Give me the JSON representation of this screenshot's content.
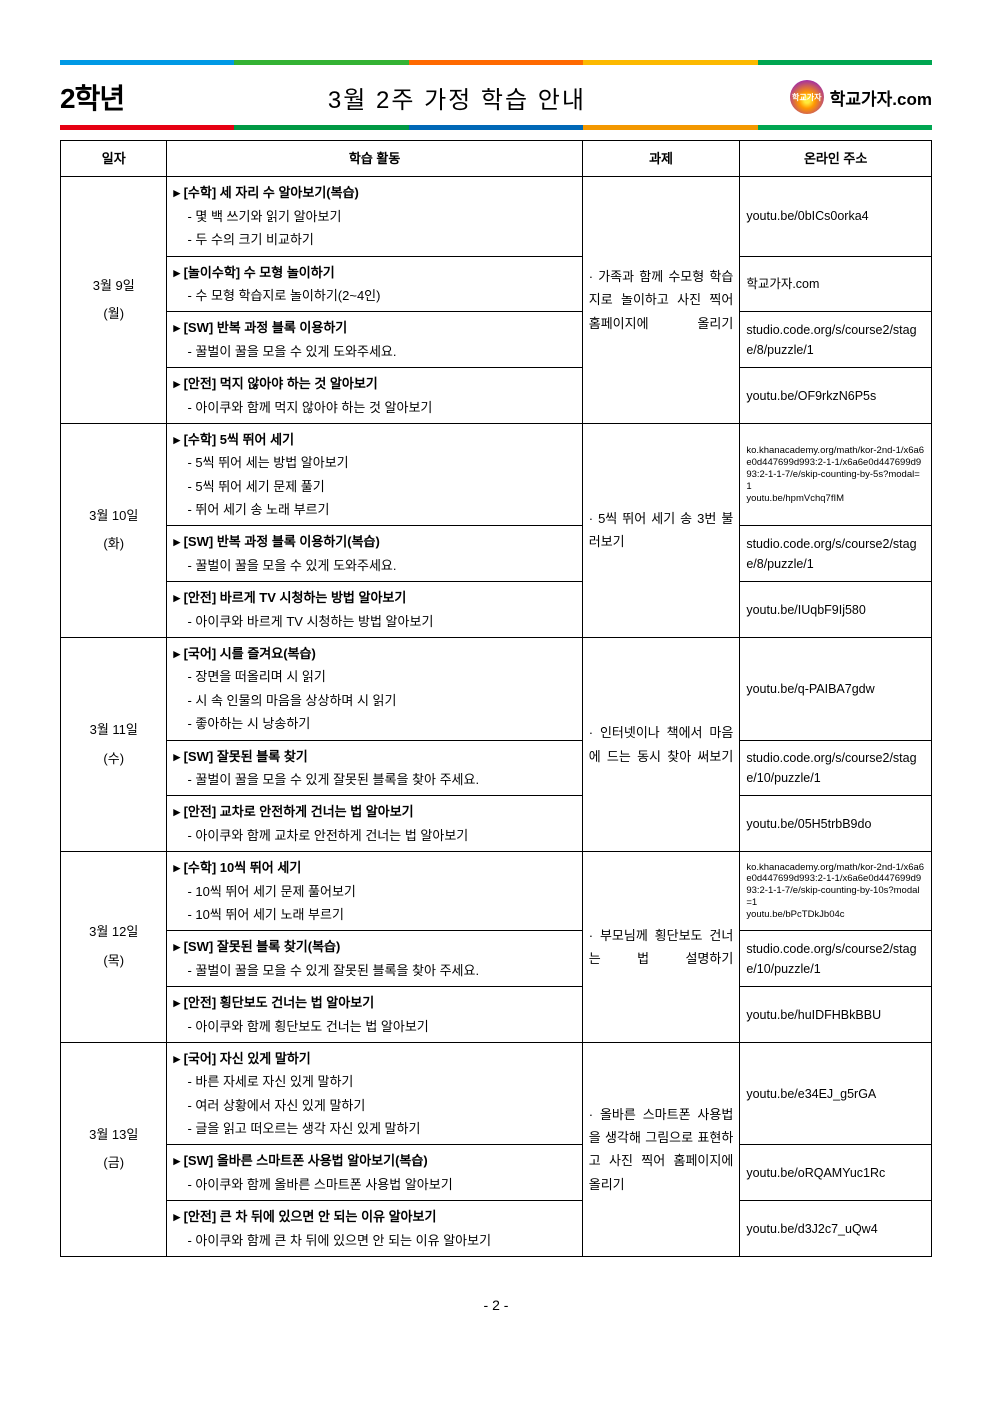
{
  "header": {
    "grade": "2학년",
    "title": "3월 2주 가정 학습 안내",
    "logo_inner": "학교가자",
    "logo_text": "학교가자.com"
  },
  "table": {
    "headers": {
      "date": "일자",
      "activity": "학습 활동",
      "task": "과제",
      "url": "온라인 주소"
    }
  },
  "days": [
    {
      "date": "3월 9일",
      "day": "(월)",
      "task": "· 가족과 함께 수모형 학습지로 놀이하고 사진 찍어 홈페이지에 올리기",
      "blocks": [
        {
          "title": "▸ [수학] 세 자리 수 알아보기(복습)",
          "items": [
            "- 몇 백 쓰기와 읽기 알아보기",
            "- 두 수의 크기 비교하기"
          ],
          "url": "youtu.be/0bICs0orka4"
        },
        {
          "title": "▸ [놀이수학] 수 모형 놀이하기",
          "items": [
            "- 수 모형 학습지로 놀이하기(2~4인)"
          ],
          "url": "학교가자.com"
        },
        {
          "title": "▸ [SW] 반복 과정 블록 이용하기",
          "items": [
            "- 꿀벌이 꿀을 모을 수 있게 도와주세요."
          ],
          "url": "studio.code.org/s/course2/stage/8/puzzle/1"
        },
        {
          "title": "▸ [안전] 먹지 않아야 하는 것 알아보기",
          "items": [
            "- 아이쿠와 함께 먹지 않아야 하는 것 알아보기"
          ],
          "url": "youtu.be/OF9rkzN6P5s"
        }
      ]
    },
    {
      "date": "3월 10일",
      "day": "(화)",
      "task": "· 5씩 뛰어 세기 송 3번 불러보기",
      "blocks": [
        {
          "title": "▸ [수학] 5씩 뛰어 세기",
          "items": [
            "- 5씩 뛰어 세는 방법 알아보기",
            "- 5씩 뛰어 세기 문제 풀기",
            "- 뛰어 세기 송 노래 부르기"
          ],
          "url": "ko.khanacademy.org/math/kor-2nd-1/x6a6e0d447699d993:2-1-1/x6a6e0d447699d993:2-1-1-7/e/skip-counting-by-5s?modal=1\nyoutu.be/hpmVchq7fIM",
          "url_small": true
        },
        {
          "title": "▸ [SW] 반복 과정 블록 이용하기(복습)",
          "items": [
            "- 꿀벌이 꿀을 모을 수 있게 도와주세요."
          ],
          "url": "studio.code.org/s/course2/stage/8/puzzle/1"
        },
        {
          "title": "▸ [안전] 바르게 TV 시청하는 방법 알아보기",
          "items": [
            "- 아이쿠와 바르게 TV 시청하는 방법 알아보기"
          ],
          "url": "youtu.be/IUqbF9Ij580"
        }
      ]
    },
    {
      "date": "3월 11일",
      "day": "(수)",
      "task": "· 인터넷이나 책에서 마음에 드는 동시 찾아 써보기",
      "blocks": [
        {
          "title": "▸ [국어] 시를 즐겨요(복습)",
          "items": [
            "- 장면을 떠올리며 시 읽기",
            "- 시 속 인물의 마음을 상상하며 시 읽기",
            "- 좋아하는 시 낭송하기"
          ],
          "url": "youtu.be/q-PAIBA7gdw"
        },
        {
          "title": "▸ [SW] 잘못된 블록 찾기",
          "items": [
            "- 꿀벌이 꿀을 모을 수 있게 잘못된 블록을 찾아 주세요."
          ],
          "url": "studio.code.org/s/course2/stage/10/puzzle/1"
        },
        {
          "title": "▸ [안전] 교차로 안전하게 건너는 법 알아보기",
          "items": [
            "- 아이쿠와 함께 교차로 안전하게 건너는 법 알아보기"
          ],
          "url": "youtu.be/05H5trbB9do"
        }
      ]
    },
    {
      "date": "3월 12일",
      "day": "(목)",
      "task": "· 부모님께 횡단보도 건너는 법 설명하기",
      "blocks": [
        {
          "title": "▸ [수학] 10씩 뛰어 세기",
          "items": [
            "- 10씩 뛰어 세기 문제 풀어보기",
            "- 10씩 뛰어 세기 노래 부르기"
          ],
          "url": "ko.khanacademy.org/math/kor-2nd-1/x6a6e0d447699d993:2-1-1/x6a6e0d447699d993:2-1-1-7/e/skip-counting-by-10s?modal=1\nyoutu.be/bPcTDkJb04c",
          "url_small": true
        },
        {
          "title": "▸ [SW] 잘못된 블록 찾기(복습)",
          "items": [
            "- 꿀벌이 꿀을 모을 수 있게 잘못된 블록을 찾아 주세요."
          ],
          "url": "studio.code.org/s/course2/stage/10/puzzle/1"
        },
        {
          "title": "▸ [안전] 횡단보도 건너는 법 알아보기",
          "items": [
            "- 아이쿠와 함께 횡단보도 건너는 법 알아보기"
          ],
          "url": "youtu.be/huIDFHBkBBU"
        }
      ]
    },
    {
      "date": "3월 13일",
      "day": "(금)",
      "task": "· 올바른 스마트폰 사용법을 생각해 그림으로 표현하고 사진 찍어 홈페이지에 올리기",
      "blocks": [
        {
          "title": "▸ [국어] 자신 있게 말하기",
          "items": [
            "- 바른 자세로 자신 있게 말하기",
            "- 여러 상황에서 자신 있게 말하기",
            "- 글을 읽고 떠오르는 생각 자신 있게 말하기"
          ],
          "url": "youtu.be/e34EJ_g5rGA"
        },
        {
          "title": "▸ [SW] 올바른 스마트폰 사용법 알아보기(복습)",
          "items": [
            "- 아이쿠와 함께 올바른 스마트폰 사용법 알아보기"
          ],
          "url": "youtu.be/oRQAMYuc1Rc"
        },
        {
          "title": "▸ [안전] 큰 차 뒤에 있으면 안 되는 이유 알아보기",
          "items": [
            "- 아이쿠와 함께 큰 차 뒤에 있으면 안 되는 이유 알아보기"
          ],
          "url": "youtu.be/d3J2c7_uQw4"
        }
      ]
    }
  ],
  "page_number": "- 2 -"
}
